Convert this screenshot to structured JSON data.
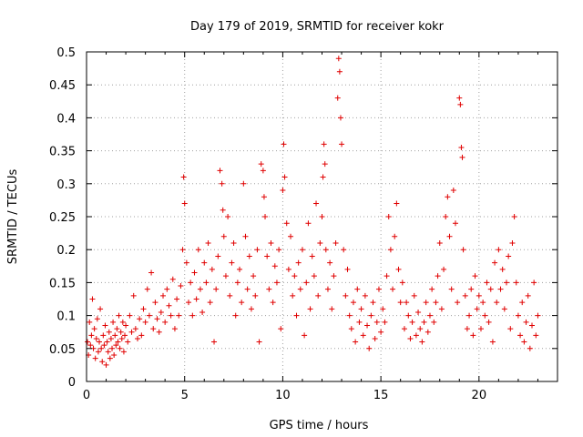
{
  "chart_data": {
    "type": "scatter",
    "title": "Day 179 of 2019, SRMTID for receiver kokr",
    "xlabel": "GPS time / hours",
    "ylabel": "SRMTID / TECUs",
    "xlim": [
      0,
      24
    ],
    "ylim": [
      0,
      0.5
    ],
    "x_ticks": [
      0,
      5,
      10,
      15,
      20
    ],
    "x_tick_labels": [
      "0",
      "5",
      "10",
      "15",
      "20"
    ],
    "y_ticks": [
      0,
      0.05,
      0.1,
      0.15,
      0.2,
      0.25,
      0.3,
      0.35,
      0.4,
      0.45,
      0.5
    ],
    "y_tick_labels": [
      "0",
      "0.05",
      "0.1",
      "0.15",
      "0.2",
      "0.25",
      "0.3",
      "0.35",
      "0.4",
      "0.45",
      "0.5"
    ],
    "grid": true,
    "marker": "+",
    "color": "#e00000",
    "series": [
      {
        "name": "SRMTID",
        "points": [
          [
            0.05,
            0.06
          ],
          [
            0.1,
            0.04
          ],
          [
            0.15,
            0.09
          ],
          [
            0.2,
            0.055
          ],
          [
            0.25,
            0.07
          ],
          [
            0.3,
            0.125
          ],
          [
            0.35,
            0.05
          ],
          [
            0.4,
            0.08
          ],
          [
            0.45,
            0.035
          ],
          [
            0.5,
            0.065
          ],
          [
            0.55,
            0.095
          ],
          [
            0.6,
            0.045
          ],
          [
            0.65,
            0.06
          ],
          [
            0.7,
            0.11
          ],
          [
            0.75,
            0.05
          ],
          [
            0.8,
            0.03
          ],
          [
            0.85,
            0.07
          ],
          [
            0.9,
            0.055
          ],
          [
            0.95,
            0.085
          ],
          [
            1.0,
            0.025
          ],
          [
            1.05,
            0.06
          ],
          [
            1.1,
            0.045
          ],
          [
            1.15,
            0.075
          ],
          [
            1.2,
            0.035
          ],
          [
            1.25,
            0.065
          ],
          [
            1.3,
            0.05
          ],
          [
            1.35,
            0.09
          ],
          [
            1.4,
            0.04
          ],
          [
            1.45,
            0.07
          ],
          [
            1.5,
            0.055
          ],
          [
            1.55,
            0.08
          ],
          [
            1.6,
            0.06
          ],
          [
            1.65,
            0.1
          ],
          [
            1.7,
            0.05
          ],
          [
            1.75,
            0.075
          ],
          [
            1.8,
            0.065
          ],
          [
            1.85,
            0.09
          ],
          [
            1.9,
            0.045
          ],
          [
            1.95,
            0.07
          ],
          [
            2.0,
            0.085
          ],
          [
            2.1,
            0.06
          ],
          [
            2.2,
            0.1
          ],
          [
            2.3,
            0.075
          ],
          [
            2.4,
            0.13
          ],
          [
            2.5,
            0.08
          ],
          [
            2.6,
            0.065
          ],
          [
            2.7,
            0.095
          ],
          [
            2.8,
            0.07
          ],
          [
            2.9,
            0.11
          ],
          [
            3.0,
            0.09
          ],
          [
            3.1,
            0.14
          ],
          [
            3.2,
            0.1
          ],
          [
            3.3,
            0.165
          ],
          [
            3.4,
            0.08
          ],
          [
            3.5,
            0.12
          ],
          [
            3.6,
            0.095
          ],
          [
            3.7,
            0.075
          ],
          [
            3.8,
            0.105
          ],
          [
            3.9,
            0.13
          ],
          [
            4.0,
            0.09
          ],
          [
            4.1,
            0.14
          ],
          [
            4.2,
            0.115
          ],
          [
            4.3,
            0.1
          ],
          [
            4.4,
            0.155
          ],
          [
            4.5,
            0.08
          ],
          [
            4.6,
            0.125
          ],
          [
            4.7,
            0.1
          ],
          [
            4.8,
            0.145
          ],
          [
            4.9,
            0.2
          ],
          [
            4.95,
            0.31
          ],
          [
            5.0,
            0.27
          ],
          [
            5.1,
            0.18
          ],
          [
            5.2,
            0.12
          ],
          [
            5.3,
            0.15
          ],
          [
            5.4,
            0.1
          ],
          [
            5.5,
            0.165
          ],
          [
            5.6,
            0.125
          ],
          [
            5.7,
            0.2
          ],
          [
            5.8,
            0.14
          ],
          [
            5.9,
            0.105
          ],
          [
            6.0,
            0.18
          ],
          [
            6.1,
            0.15
          ],
          [
            6.2,
            0.21
          ],
          [
            6.3,
            0.12
          ],
          [
            6.4,
            0.17
          ],
          [
            6.5,
            0.06
          ],
          [
            6.6,
            0.14
          ],
          [
            6.7,
            0.19
          ],
          [
            6.8,
            0.32
          ],
          [
            6.9,
            0.3
          ],
          [
            6.95,
            0.26
          ],
          [
            7.0,
            0.22
          ],
          [
            7.1,
            0.16
          ],
          [
            7.2,
            0.25
          ],
          [
            7.3,
            0.13
          ],
          [
            7.4,
            0.18
          ],
          [
            7.5,
            0.21
          ],
          [
            7.6,
            0.1
          ],
          [
            7.7,
            0.15
          ],
          [
            7.8,
            0.17
          ],
          [
            7.9,
            0.12
          ],
          [
            8.0,
            0.3
          ],
          [
            8.1,
            0.22
          ],
          [
            8.2,
            0.14
          ],
          [
            8.3,
            0.19
          ],
          [
            8.4,
            0.11
          ],
          [
            8.5,
            0.16
          ],
          [
            8.6,
            0.13
          ],
          [
            8.7,
            0.2
          ],
          [
            8.8,
            0.06
          ],
          [
            8.9,
            0.33
          ],
          [
            9.0,
            0.32
          ],
          [
            9.05,
            0.28
          ],
          [
            9.1,
            0.25
          ],
          [
            9.2,
            0.19
          ],
          [
            9.3,
            0.14
          ],
          [
            9.4,
            0.21
          ],
          [
            9.5,
            0.12
          ],
          [
            9.6,
            0.175
          ],
          [
            9.7,
            0.15
          ],
          [
            9.8,
            0.2
          ],
          [
            9.9,
            0.08
          ],
          [
            10.0,
            0.29
          ],
          [
            10.05,
            0.36
          ],
          [
            10.1,
            0.31
          ],
          [
            10.2,
            0.24
          ],
          [
            10.3,
            0.17
          ],
          [
            10.4,
            0.22
          ],
          [
            10.5,
            0.13
          ],
          [
            10.6,
            0.16
          ],
          [
            10.7,
            0.1
          ],
          [
            10.8,
            0.18
          ],
          [
            10.9,
            0.14
          ],
          [
            11.0,
            0.2
          ],
          [
            11.1,
            0.07
          ],
          [
            11.2,
            0.15
          ],
          [
            11.3,
            0.24
          ],
          [
            11.4,
            0.11
          ],
          [
            11.5,
            0.19
          ],
          [
            11.6,
            0.16
          ],
          [
            11.7,
            0.27
          ],
          [
            11.8,
            0.13
          ],
          [
            11.9,
            0.21
          ],
          [
            12.0,
            0.25
          ],
          [
            12.05,
            0.31
          ],
          [
            12.1,
            0.36
          ],
          [
            12.15,
            0.33
          ],
          [
            12.2,
            0.2
          ],
          [
            12.3,
            0.14
          ],
          [
            12.4,
            0.18
          ],
          [
            12.5,
            0.11
          ],
          [
            12.6,
            0.16
          ],
          [
            12.7,
            0.21
          ],
          [
            12.8,
            0.43
          ],
          [
            12.85,
            0.49
          ],
          [
            12.9,
            0.47
          ],
          [
            12.95,
            0.4
          ],
          [
            13.0,
            0.36
          ],
          [
            13.1,
            0.2
          ],
          [
            13.2,
            0.13
          ],
          [
            13.3,
            0.17
          ],
          [
            13.4,
            0.1
          ],
          [
            13.5,
            0.08
          ],
          [
            13.6,
            0.12
          ],
          [
            13.7,
            0.06
          ],
          [
            13.8,
            0.14
          ],
          [
            13.9,
            0.09
          ],
          [
            14.0,
            0.11
          ],
          [
            14.1,
            0.07
          ],
          [
            14.2,
            0.13
          ],
          [
            14.3,
            0.085
          ],
          [
            14.4,
            0.05
          ],
          [
            14.5,
            0.1
          ],
          [
            14.6,
            0.12
          ],
          [
            14.7,
            0.065
          ],
          [
            14.8,
            0.09
          ],
          [
            14.9,
            0.14
          ],
          [
            15.0,
            0.075
          ],
          [
            15.1,
            0.11
          ],
          [
            15.2,
            0.09
          ],
          [
            15.3,
            0.16
          ],
          [
            15.4,
            0.25
          ],
          [
            15.5,
            0.2
          ],
          [
            15.6,
            0.14
          ],
          [
            15.7,
            0.22
          ],
          [
            15.8,
            0.27
          ],
          [
            15.9,
            0.17
          ],
          [
            16.0,
            0.12
          ],
          [
            16.1,
            0.15
          ],
          [
            16.2,
            0.08
          ],
          [
            16.3,
            0.12
          ],
          [
            16.4,
            0.1
          ],
          [
            16.5,
            0.065
          ],
          [
            16.6,
            0.09
          ],
          [
            16.7,
            0.13
          ],
          [
            16.8,
            0.07
          ],
          [
            16.9,
            0.105
          ],
          [
            17.0,
            0.08
          ],
          [
            17.1,
            0.06
          ],
          [
            17.2,
            0.09
          ],
          [
            17.3,
            0.12
          ],
          [
            17.4,
            0.075
          ],
          [
            17.5,
            0.1
          ],
          [
            17.6,
            0.14
          ],
          [
            17.7,
            0.09
          ],
          [
            17.8,
            0.12
          ],
          [
            17.9,
            0.16
          ],
          [
            18.0,
            0.21
          ],
          [
            18.1,
            0.11
          ],
          [
            18.2,
            0.17
          ],
          [
            18.3,
            0.25
          ],
          [
            18.4,
            0.28
          ],
          [
            18.5,
            0.22
          ],
          [
            18.6,
            0.14
          ],
          [
            18.7,
            0.29
          ],
          [
            18.8,
            0.24
          ],
          [
            18.9,
            0.12
          ],
          [
            19.0,
            0.43
          ],
          [
            19.05,
            0.42
          ],
          [
            19.1,
            0.355
          ],
          [
            19.15,
            0.34
          ],
          [
            19.2,
            0.2
          ],
          [
            19.3,
            0.13
          ],
          [
            19.4,
            0.08
          ],
          [
            19.5,
            0.1
          ],
          [
            19.6,
            0.14
          ],
          [
            19.7,
            0.07
          ],
          [
            19.8,
            0.16
          ],
          [
            19.9,
            0.11
          ],
          [
            20.0,
            0.13
          ],
          [
            20.1,
            0.08
          ],
          [
            20.2,
            0.12
          ],
          [
            20.3,
            0.1
          ],
          [
            20.4,
            0.15
          ],
          [
            20.5,
            0.09
          ],
          [
            20.6,
            0.14
          ],
          [
            20.7,
            0.06
          ],
          [
            20.8,
            0.18
          ],
          [
            20.9,
            0.12
          ],
          [
            21.0,
            0.2
          ],
          [
            21.1,
            0.14
          ],
          [
            21.2,
            0.17
          ],
          [
            21.3,
            0.11
          ],
          [
            21.4,
            0.15
          ],
          [
            21.5,
            0.19
          ],
          [
            21.6,
            0.08
          ],
          [
            21.7,
            0.21
          ],
          [
            21.8,
            0.25
          ],
          [
            21.9,
            0.15
          ],
          [
            22.0,
            0.1
          ],
          [
            22.1,
            0.07
          ],
          [
            22.2,
            0.12
          ],
          [
            22.3,
            0.06
          ],
          [
            22.4,
            0.09
          ],
          [
            22.5,
            0.13
          ],
          [
            22.6,
            0.05
          ],
          [
            22.7,
            0.085
          ],
          [
            22.8,
            0.15
          ],
          [
            22.9,
            0.07
          ],
          [
            23.0,
            0.1
          ]
        ]
      }
    ]
  }
}
